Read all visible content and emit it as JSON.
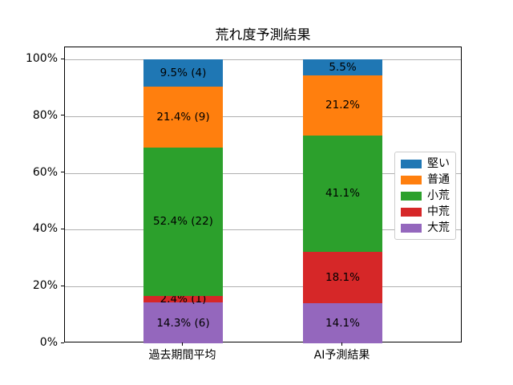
{
  "chart_data": {
    "type": "bar",
    "stacked": true,
    "title": "荒れ度予測結果",
    "categories": [
      "過去期間平均",
      "AI予測結果"
    ],
    "series": [
      {
        "name": "堅い",
        "color": "#1f77b4",
        "values": [
          9.5,
          5.5
        ],
        "bar_labels": [
          "9.5% (4)",
          "5.5%"
        ]
      },
      {
        "name": "普通",
        "color": "#ff7f0e",
        "values": [
          21.4,
          21.2
        ],
        "bar_labels": [
          "21.4% (9)",
          "21.2%"
        ]
      },
      {
        "name": "小荒",
        "color": "#2ca02c",
        "values": [
          52.4,
          41.1
        ],
        "bar_labels": [
          "52.4% (22)",
          "41.1%"
        ]
      },
      {
        "name": "中荒",
        "color": "#d62728",
        "values": [
          2.4,
          18.1
        ],
        "bar_labels": [
          "2.4% (1)",
          "18.1%"
        ]
      },
      {
        "name": "大荒",
        "color": "#9467bd",
        "values": [
          14.3,
          14.1
        ],
        "bar_labels": [
          "14.3% (6)",
          "14.1%"
        ]
      }
    ],
    "stack_order_bottom_to_top": [
      "大荒",
      "中荒",
      "小荒",
      "普通",
      "堅い"
    ],
    "counts_first_category": [
      4,
      9,
      22,
      1,
      6
    ],
    "xlabel": "",
    "ylabel": "",
    "ylim": [
      0,
      104.3
    ],
    "y_tick_values": [
      0,
      20,
      40,
      60,
      80,
      100
    ],
    "y_tick_labels": [
      "0%",
      "20%",
      "40%",
      "60%",
      "80%",
      "100%"
    ],
    "grid": true,
    "gridline_color": "#b0b0b0",
    "legend_position": "center right",
    "legend_entries": [
      "堅い",
      "普通",
      "小荒",
      "中荒",
      "大荒"
    ]
  }
}
